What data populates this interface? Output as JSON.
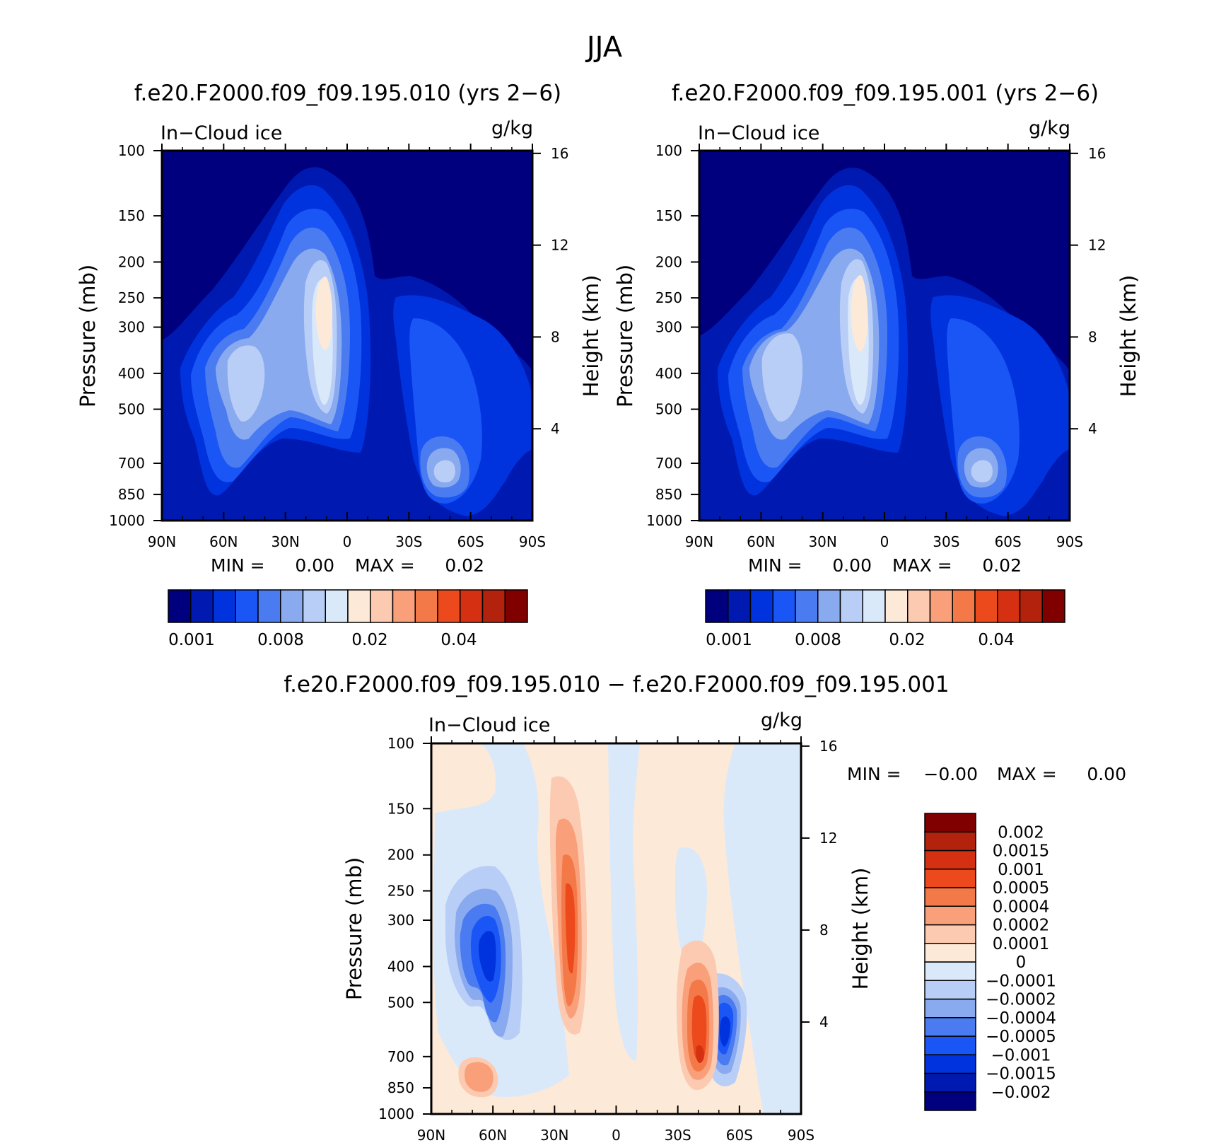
{
  "figure_title": "JJA",
  "colors": {
    "abs_levels": [
      "#00007f",
      "#0019b0",
      "#0033dd",
      "#1a55f5",
      "#4a7bf0",
      "#8aaaf0",
      "#b9cef7",
      "#dae9fa",
      "#fde9d8",
      "#fbcab0",
      "#f9a07a",
      "#f47948",
      "#ec4a1c",
      "#d63012",
      "#b2220c",
      "#800000"
    ],
    "diff_levels": [
      "#00007f",
      "#0019b0",
      "#0033dd",
      "#1a55f5",
      "#4a7bf0",
      "#8aaaf0",
      "#b9cef7",
      "#dae9fa",
      "#fde9d8",
      "#fbcab0",
      "#f9a07a",
      "#f47948",
      "#ec4a1c",
      "#d63012",
      "#b2220c",
      "#800000"
    ]
  },
  "chart_data": [
    {
      "id": "panel-010",
      "type": "heatmap",
      "title": "f.e20.F2000.f09_f09.195.010 (yrs 2−6)",
      "variable": "In−Cloud ice",
      "units": "g/kg",
      "ylabel": "Pressure (mb)",
      "ylabel_right": "Height (km)",
      "x_ticks": [
        "90N",
        "60N",
        "30N",
        "0",
        "30S",
        "60S",
        "90S"
      ],
      "x_range": [
        90,
        -90
      ],
      "y_ticks": [
        100,
        150,
        200,
        250,
        300,
        400,
        500,
        700,
        850,
        1000
      ],
      "y_range": [
        100,
        1000
      ],
      "right_ticks": [
        16,
        12,
        8,
        4
      ],
      "min_label": "MIN =",
      "min_value": "0.00",
      "max_label": "MAX =",
      "max_value": "0.02",
      "colorbar_labels": [
        "0.001",
        "0.008",
        "0.02",
        "0.04"
      ],
      "features": [
        {
          "lat": 12,
          "p": 270,
          "value": 0.02
        },
        {
          "lat": 50,
          "p": 380,
          "value": 0.01
        },
        {
          "lat": -45,
          "p": 770,
          "value": 0.012
        },
        {
          "lat": -40,
          "p": 420,
          "value": 0.004
        }
      ]
    },
    {
      "id": "panel-001",
      "type": "heatmap",
      "title": "f.e20.F2000.f09_f09.195.001 (yrs 2−6)",
      "variable": "In−Cloud ice",
      "units": "g/kg",
      "ylabel": "Pressure (mb)",
      "ylabel_right": "Height (km)",
      "x_ticks": [
        "90N",
        "60N",
        "30N",
        "0",
        "30S",
        "60S",
        "90S"
      ],
      "x_range": [
        90,
        -90
      ],
      "y_ticks": [
        100,
        150,
        200,
        250,
        300,
        400,
        500,
        700,
        850,
        1000
      ],
      "y_range": [
        100,
        1000
      ],
      "right_ticks": [
        16,
        12,
        8,
        4
      ],
      "min_label": "MIN =",
      "min_value": "0.00",
      "max_label": "MAX =",
      "max_value": "0.02",
      "colorbar_labels": [
        "0.001",
        "0.008",
        "0.02",
        "0.04"
      ],
      "features": [
        {
          "lat": 10,
          "p": 270,
          "value": 0.02
        },
        {
          "lat": 50,
          "p": 380,
          "value": 0.011
        },
        {
          "lat": -45,
          "p": 770,
          "value": 0.012
        },
        {
          "lat": -40,
          "p": 420,
          "value": 0.004
        }
      ]
    },
    {
      "id": "panel-diff",
      "type": "heatmap",
      "title": "f.e20.F2000.f09_f09.195.010 − f.e20.F2000.f09_f09.195.001",
      "variable": "In−Cloud ice",
      "units": "g/kg",
      "ylabel": "Pressure (mb)",
      "ylabel_right": "Height (km)",
      "x_ticks": [
        "90N",
        "60N",
        "30N",
        "0",
        "30S",
        "60S",
        "90S"
      ],
      "x_range": [
        90,
        -90
      ],
      "y_ticks": [
        100,
        150,
        200,
        250,
        300,
        400,
        500,
        700,
        850,
        1000
      ],
      "y_range": [
        100,
        1000
      ],
      "right_ticks": [
        16,
        12,
        8,
        4
      ],
      "min_label": "MIN =",
      "min_value": "−0.00",
      "max_label": "MAX =",
      "max_value": "0.00",
      "colorbar_labels": [
        "0.002",
        "0.0015",
        "0.001",
        "0.0005",
        "0.0004",
        "0.0002",
        "0.0001",
        "0",
        "−0.0001",
        "−0.0002",
        "−0.0004",
        "−0.0005",
        "−0.001",
        "−0.0015",
        "−0.002"
      ],
      "features": [
        {
          "lat": 60,
          "p": 350,
          "value": -0.0015
        },
        {
          "lat": 20,
          "p": 250,
          "value": 0.001
        },
        {
          "lat": -40,
          "p": 600,
          "value": 0.0015
        },
        {
          "lat": -58,
          "p": 770,
          "value": -0.0015
        },
        {
          "lat": 60,
          "p": 770,
          "value": 0.0005
        }
      ]
    }
  ]
}
